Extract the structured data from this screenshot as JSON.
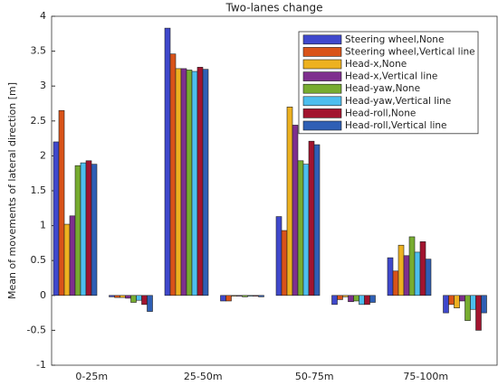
{
  "chart_data": {
    "type": "bar",
    "title": "Two-lanes change",
    "y_label": "Mean of movements of lateral direction [m]",
    "categories": [
      "0-25m",
      null,
      "25-50m",
      null,
      "50-75m",
      null,
      "75-100m",
      null
    ],
    "series": [
      {
        "name": "Steering wheel,None",
        "color": "#3f48cc",
        "values": [
          2.2,
          -0.02,
          3.83,
          -0.08,
          1.13,
          -0.13,
          0.54,
          -0.25
        ]
      },
      {
        "name": "Steering wheel,Vertical line",
        "color": "#d95319",
        "values": [
          2.65,
          -0.03,
          3.46,
          -0.08,
          0.93,
          -0.06,
          0.35,
          -0.13
        ]
      },
      {
        "name": "Head-x,None",
        "color": "#edb120",
        "values": [
          1.02,
          -0.03,
          3.25,
          -0.01,
          2.7,
          -0.02,
          0.72,
          -0.18
        ]
      },
      {
        "name": "Head-x,Vertical line",
        "color": "#7e2f8e",
        "values": [
          1.14,
          -0.04,
          3.25,
          -0.01,
          2.44,
          -0.09,
          0.57,
          -0.08
        ]
      },
      {
        "name": "Head-yaw,None",
        "color": "#77ac30",
        "values": [
          1.86,
          -0.1,
          3.23,
          -0.02,
          1.93,
          -0.08,
          0.84,
          -0.36
        ]
      },
      {
        "name": "Head-yaw,Vertical line",
        "color": "#4dbeee",
        "values": [
          1.9,
          -0.07,
          3.21,
          -0.01,
          1.88,
          -0.13,
          0.62,
          -0.2
        ]
      },
      {
        "name": "Head-roll,None",
        "color": "#a2142f",
        "values": [
          1.93,
          -0.13,
          3.27,
          -0.01,
          2.21,
          -0.13,
          0.77,
          -0.5
        ]
      },
      {
        "name": "Head-roll,Vertical line",
        "color": "#2f5fb5",
        "values": [
          1.88,
          -0.23,
          3.24,
          -0.02,
          2.16,
          -0.1,
          0.52,
          -0.25
        ]
      }
    ],
    "ylim": [
      -1,
      4
    ],
    "yticks": [
      -1,
      -0.5,
      0,
      0.5,
      1,
      1.5,
      2,
      2.5,
      3,
      3.5,
      4
    ],
    "grid": false,
    "legend": "upper right"
  }
}
